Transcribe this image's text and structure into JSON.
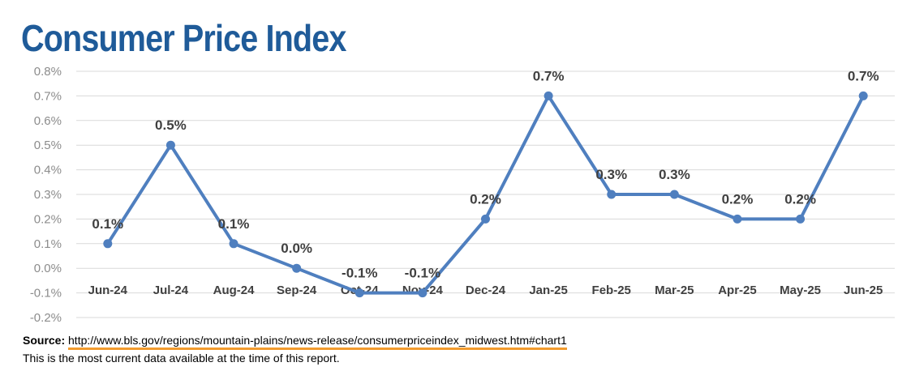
{
  "page": {
    "title": "Consumer Price Index",
    "source_label": "Source:",
    "source_url": "http://www.bls.gov/regions/mountain-plains/news-release/consumerpriceindex_midwest.htm#chart1",
    "note": "This is the most current data available at the time of this report.",
    "colors": {
      "title": "#1f5b99",
      "line": "#4f7fbf",
      "link_underline": "#f29b2e"
    }
  },
  "chart_data": {
    "type": "line",
    "categories": [
      "Jun-24",
      "Jul-24",
      "Aug-24",
      "Sep-24",
      "Oct-24",
      "Nov-24",
      "Dec-24",
      "Jan-25",
      "Feb-25",
      "Mar-25",
      "Apr-25",
      "May-25",
      "Jun-25"
    ],
    "values": [
      0.1,
      0.5,
      0.1,
      0.0,
      -0.1,
      -0.1,
      0.2,
      0.7,
      0.3,
      0.3,
      0.2,
      0.2,
      0.7
    ],
    "data_labels": [
      "0.1%",
      "0.5%",
      "0.1%",
      "0.0%",
      "-0.1%",
      "-0.1%",
      "0.2%",
      "0.7%",
      "0.3%",
      "0.3%",
      "0.2%",
      "0.2%",
      "0.7%"
    ],
    "ylim": [
      -0.2,
      0.8
    ],
    "yticks": [
      0.8,
      0.7,
      0.6,
      0.5,
      0.4,
      0.3,
      0.2,
      0.1,
      0.0,
      -0.1,
      -0.2
    ],
    "ytick_labels": [
      "0.8%",
      "0.7%",
      "0.6%",
      "0.5%",
      "0.4%",
      "0.3%",
      "0.2%",
      "0.1%",
      "0.0%",
      "-0.1%",
      "-0.2%"
    ],
    "grid": true,
    "legend": false
  }
}
